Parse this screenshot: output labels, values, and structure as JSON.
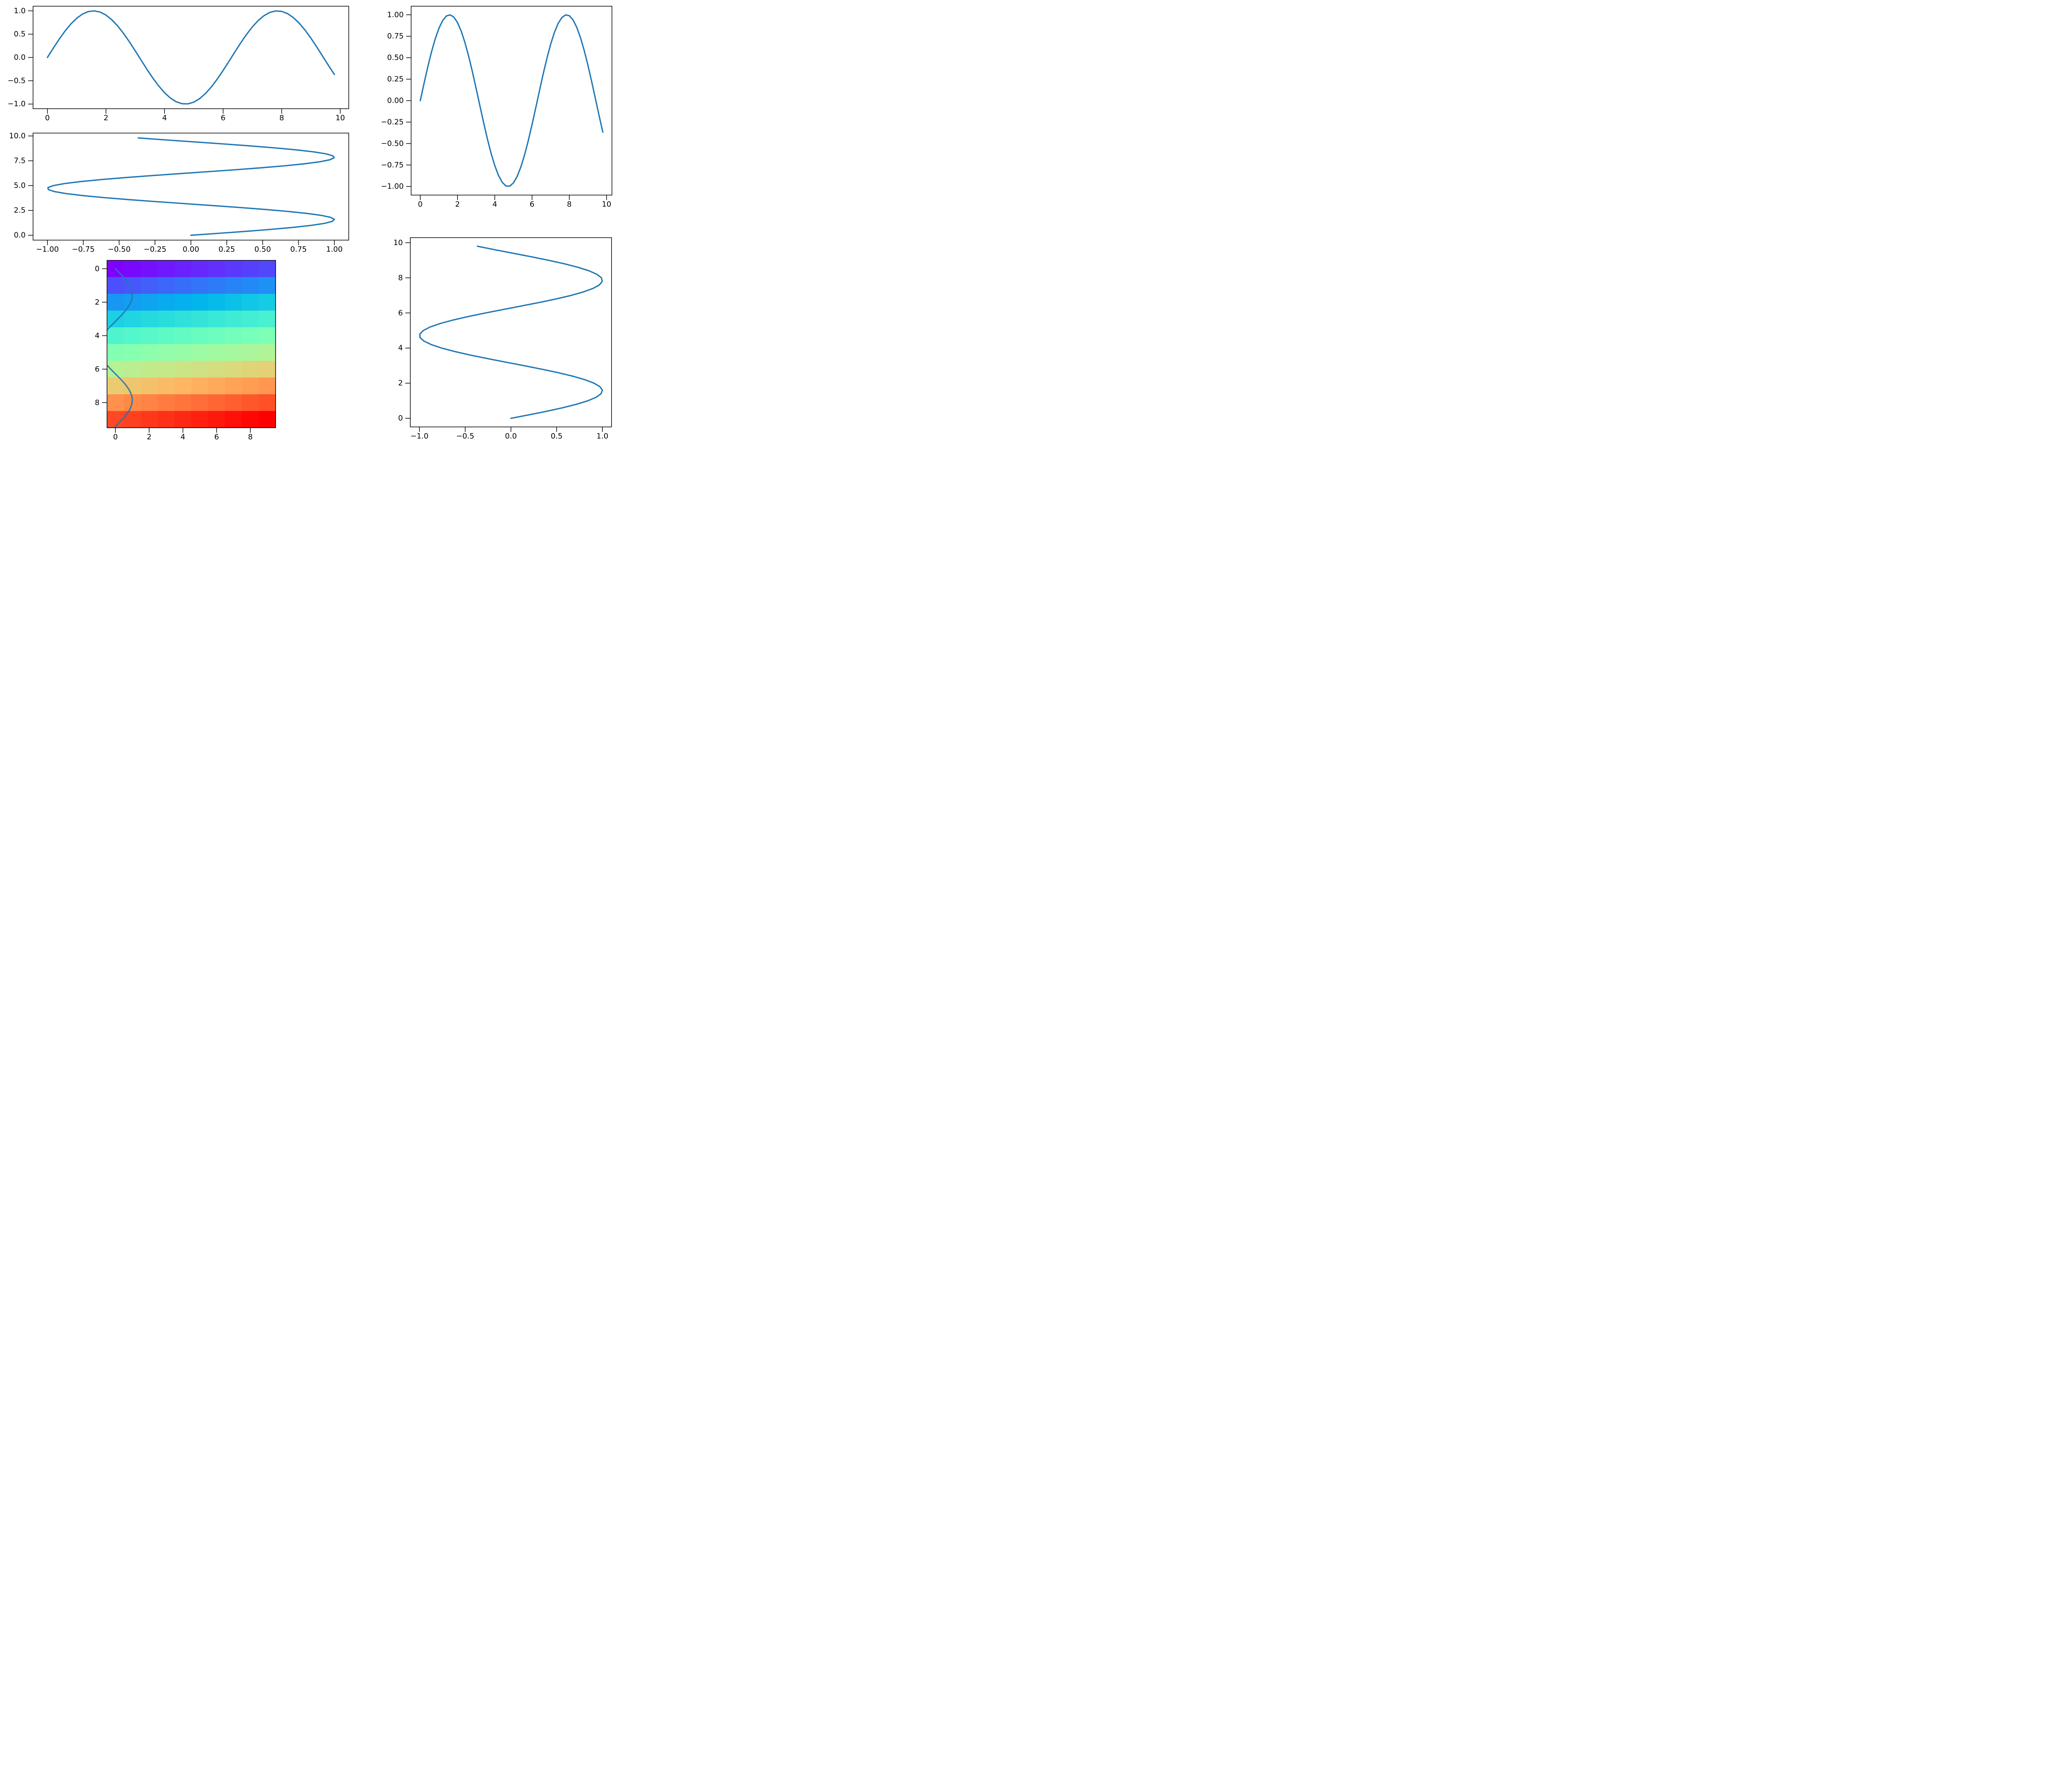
{
  "figure": {
    "background": "#ffffff",
    "line_color": "#1f77b4",
    "spine_color": "#000000",
    "tick_color": "#000000"
  },
  "chart_data": [
    {
      "id": "sine-top-left",
      "type": "line",
      "title": "",
      "xlabel": "",
      "ylabel": "",
      "grid": false,
      "legend": null,
      "x_range": [
        -0.49,
        10.29
      ],
      "y_range": [
        -1.1,
        1.1
      ],
      "x_ticks": [
        0,
        2,
        4,
        6,
        8,
        10
      ],
      "x_tick_labels": [
        "0",
        "2",
        "4",
        "6",
        "8",
        "10"
      ],
      "y_ticks": [
        -1.0,
        -0.5,
        0.0,
        0.5,
        1.0
      ],
      "y_tick_labels": [
        "−1.0",
        "−0.5",
        "0.0",
        "0.5",
        "1.0"
      ],
      "series": [
        {
          "name": "sin(t)",
          "x_expr": "t",
          "y_expr": "sin(t)",
          "t_start": 0,
          "t_end": 9.8,
          "t_step": 0.2,
          "color": "#1f77b4"
        }
      ]
    },
    {
      "id": "sine-sideways-middle-left",
      "type": "line",
      "title": "",
      "xlabel": "",
      "ylabel": "",
      "grid": false,
      "legend": null,
      "x_range": [
        -1.1,
        1.1
      ],
      "y_range": [
        -0.49,
        10.29
      ],
      "x_ticks": [
        -1.0,
        -0.75,
        -0.5,
        -0.25,
        0.0,
        0.25,
        0.5,
        0.75,
        1.0
      ],
      "x_tick_labels": [
        "−1.00",
        "−0.75",
        "−0.50",
        "−0.25",
        "0.00",
        "0.25",
        "0.50",
        "0.75",
        "1.00"
      ],
      "y_ticks": [
        0.0,
        2.5,
        5.0,
        7.5,
        10.0
      ],
      "y_tick_labels": [
        "0.0",
        "2.5",
        "5.0",
        "7.5",
        "10.0"
      ],
      "series": [
        {
          "name": "sin(t) sideways",
          "x_expr": "sin(t)",
          "y_expr": "t",
          "t_start": 0,
          "t_end": 9.8,
          "t_step": 0.2,
          "color": "#1f77b4"
        }
      ]
    },
    {
      "id": "rainbow-heatmap",
      "type": "heatmap",
      "title": "",
      "xlabel": "",
      "ylabel": "",
      "grid": false,
      "legend": null,
      "x_range": [
        -0.5,
        9.5
      ],
      "y_range": [
        -0.5,
        9.5
      ],
      "y_inverted": true,
      "x_ticks": [
        0,
        2,
        4,
        6,
        8
      ],
      "x_tick_labels": [
        "0",
        "2",
        "4",
        "6",
        "8"
      ],
      "y_ticks": [
        0,
        2,
        4,
        6,
        8
      ],
      "y_tick_labels": [
        "0",
        "2",
        "4",
        "6",
        "8"
      ],
      "colormap": "rainbow",
      "value_scale": 99,
      "values": [
        [
          0,
          1,
          2,
          3,
          4,
          5,
          6,
          7,
          8,
          9
        ],
        [
          10,
          11,
          12,
          13,
          14,
          15,
          16,
          17,
          18,
          19
        ],
        [
          20,
          21,
          22,
          23,
          24,
          25,
          26,
          27,
          28,
          29
        ],
        [
          30,
          31,
          32,
          33,
          34,
          35,
          36,
          37,
          38,
          39
        ],
        [
          40,
          41,
          42,
          43,
          44,
          45,
          46,
          47,
          48,
          49
        ],
        [
          50,
          51,
          52,
          53,
          54,
          55,
          56,
          57,
          58,
          59
        ],
        [
          60,
          61,
          62,
          63,
          64,
          65,
          66,
          67,
          68,
          69
        ],
        [
          70,
          71,
          72,
          73,
          74,
          75,
          76,
          77,
          78,
          79
        ],
        [
          80,
          81,
          82,
          83,
          84,
          85,
          86,
          87,
          88,
          89
        ],
        [
          90,
          91,
          92,
          93,
          94,
          95,
          96,
          97,
          98,
          99
        ]
      ],
      "series": [
        {
          "name": "sin(t) overlay",
          "x_expr": "sin(t)",
          "y_expr": "t",
          "t_start": 0,
          "t_end": 9.8,
          "t_step": 0.2,
          "color": "#1f77b4",
          "opacity": 0.9
        }
      ]
    },
    {
      "id": "sine-top-right",
      "type": "line",
      "title": "",
      "xlabel": "",
      "ylabel": "",
      "grid": false,
      "legend": null,
      "x_range": [
        -0.49,
        10.29
      ],
      "y_range": [
        -1.1,
        1.1
      ],
      "x_ticks": [
        0,
        2,
        4,
        6,
        8,
        10
      ],
      "x_tick_labels": [
        "0",
        "2",
        "4",
        "6",
        "8",
        "10"
      ],
      "y_ticks": [
        -1.0,
        -0.75,
        -0.5,
        -0.25,
        0.0,
        0.25,
        0.5,
        0.75,
        1.0
      ],
      "y_tick_labels": [
        "−1.00",
        "−0.75",
        "−0.50",
        "−0.25",
        "0.00",
        "0.25",
        "0.50",
        "0.75",
        "1.00"
      ],
      "series": [
        {
          "name": "sin(t)",
          "x_expr": "t",
          "y_expr": "sin(t)",
          "t_start": 0,
          "t_end": 9.8,
          "t_step": 0.2,
          "color": "#1f77b4"
        }
      ]
    },
    {
      "id": "sine-sideways-bottom-right",
      "type": "line",
      "title": "",
      "xlabel": "",
      "ylabel": "",
      "grid": false,
      "legend": null,
      "x_range": [
        -1.1,
        1.1
      ],
      "y_range": [
        -0.49,
        10.29
      ],
      "x_ticks": [
        -1.0,
        -0.5,
        0.0,
        0.5,
        1.0
      ],
      "x_tick_labels": [
        "−1.0",
        "−0.5",
        "0.0",
        "0.5",
        "1.0"
      ],
      "y_ticks": [
        0,
        2,
        4,
        6,
        8,
        10
      ],
      "y_tick_labels": [
        "0",
        "2",
        "4",
        "6",
        "8",
        "10"
      ],
      "series": [
        {
          "name": "sin(t) sideways",
          "x_expr": "sin(t)",
          "y_expr": "t",
          "t_start": 0,
          "t_end": 9.8,
          "t_step": 0.2,
          "color": "#1f77b4"
        }
      ]
    }
  ]
}
